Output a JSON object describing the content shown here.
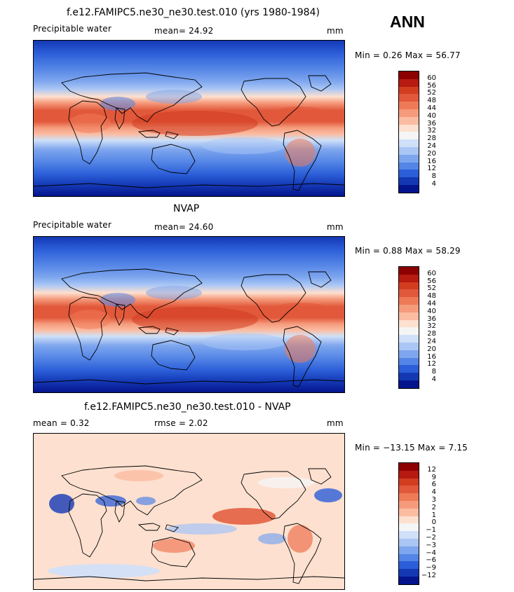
{
  "season": "ANN",
  "panels": [
    {
      "title": "f.e12.FAMIPC5.ne30_ne30.test.010 (yrs 1980-1984)",
      "left_label": "Precipitable water",
      "mid_label": "mean=  24.92",
      "units": "mm",
      "minmax": "Min =    0.26  Max =   56.77",
      "colorbar_labels": [
        "60",
        "56",
        "52",
        "48",
        "44",
        "40",
        "36",
        "32",
        "28",
        "24",
        "20",
        "16",
        "12",
        "8",
        "4"
      ],
      "kind": "field"
    },
    {
      "title": "NVAP",
      "left_label": "Precipitable water",
      "mid_label": "mean=  24.60",
      "units": "mm",
      "minmax": "Min =    0.88  Max =   58.29",
      "colorbar_labels": [
        "60",
        "56",
        "52",
        "48",
        "44",
        "40",
        "36",
        "32",
        "28",
        "24",
        "20",
        "16",
        "12",
        "8",
        "4"
      ],
      "kind": "field"
    },
    {
      "title": "f.e12.FAMIPC5.ne30_ne30.test.010 - NVAP",
      "left_label": "mean =    0.32",
      "mid_label": "rmse =    2.02",
      "units": "mm",
      "minmax": "Min = −13.15  Max =    7.15",
      "colorbar_labels": [
        "12",
        "9",
        "6",
        "4",
        "3",
        "2",
        "1",
        "0",
        "−1",
        "−2",
        "−3",
        "−4",
        "−6",
        "−9",
        "−12"
      ],
      "kind": "diff"
    }
  ],
  "colors": {
    "field_scale": [
      "#8c0000",
      "#b71a10",
      "#d23d20",
      "#e2583a",
      "#ef7a58",
      "#f59b7c",
      "#fbbca1",
      "#fde0cf",
      "#f5f5f5",
      "#cfe0f8",
      "#a9c6f5",
      "#7ea6ee",
      "#5485e6",
      "#2b5ed8",
      "#1438b4",
      "#04148c"
    ],
    "diff_scale": [
      "#8c0000",
      "#b71a10",
      "#d23d20",
      "#e2583a",
      "#ef7a58",
      "#f59b7c",
      "#fbbca1",
      "#fde0cf",
      "#f5f5f5",
      "#cfe0f8",
      "#a9c6f5",
      "#7ea6ee",
      "#5485e6",
      "#2b5ed8",
      "#1438b4",
      "#04148c"
    ]
  }
}
